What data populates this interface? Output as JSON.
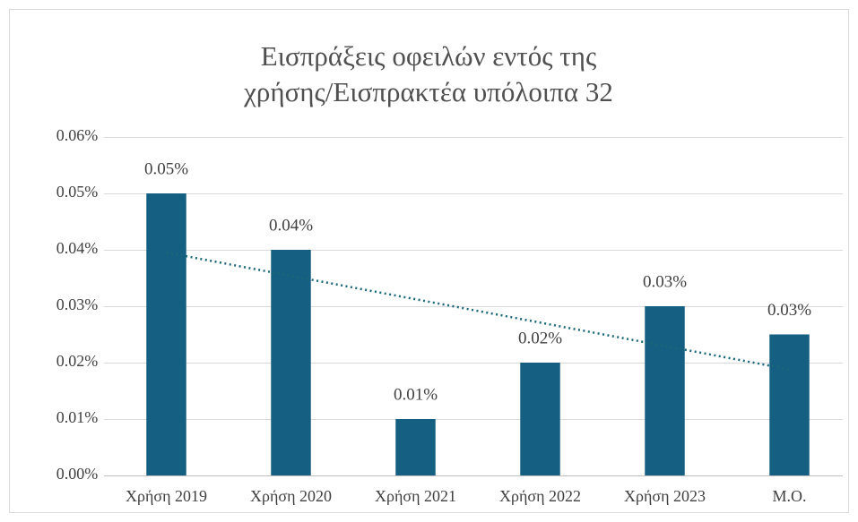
{
  "chart_data": {
    "type": "bar",
    "title": [
      "Εισπράξεις οφειλών εντός της",
      "χρήσης/Εισπρακτέα υπόλοιπα 32"
    ],
    "categories": [
      "Χρήση 2019",
      "Χρήση 2020",
      "Χρήση 2021",
      "Χρήση 2022",
      "Χρήση 2023",
      "Μ.Ο."
    ],
    "values": [
      0.05,
      0.04,
      0.01,
      0.02,
      0.03,
      0.025
    ],
    "value_labels": [
      "0.05%",
      "0.04%",
      "0.01%",
      "0.02%",
      "0.03%",
      "0.03%"
    ],
    "color": "#155f82",
    "ylim": [
      0,
      0.06
    ],
    "yticks": [
      {
        "value": 0,
        "label": "0.00%"
      },
      {
        "value": 0.01,
        "label": "0.01%"
      },
      {
        "value": 0.02,
        "label": "0.02%"
      },
      {
        "value": 0.03,
        "label": "0.03%"
      },
      {
        "value": 0.04,
        "label": "0.04%"
      },
      {
        "value": 0.05,
        "label": "0.05%"
      },
      {
        "value": 0.06,
        "label": "0.06%"
      }
    ],
    "grid": true,
    "trendline": {
      "type": "linear",
      "color": "#1a6678"
    }
  }
}
